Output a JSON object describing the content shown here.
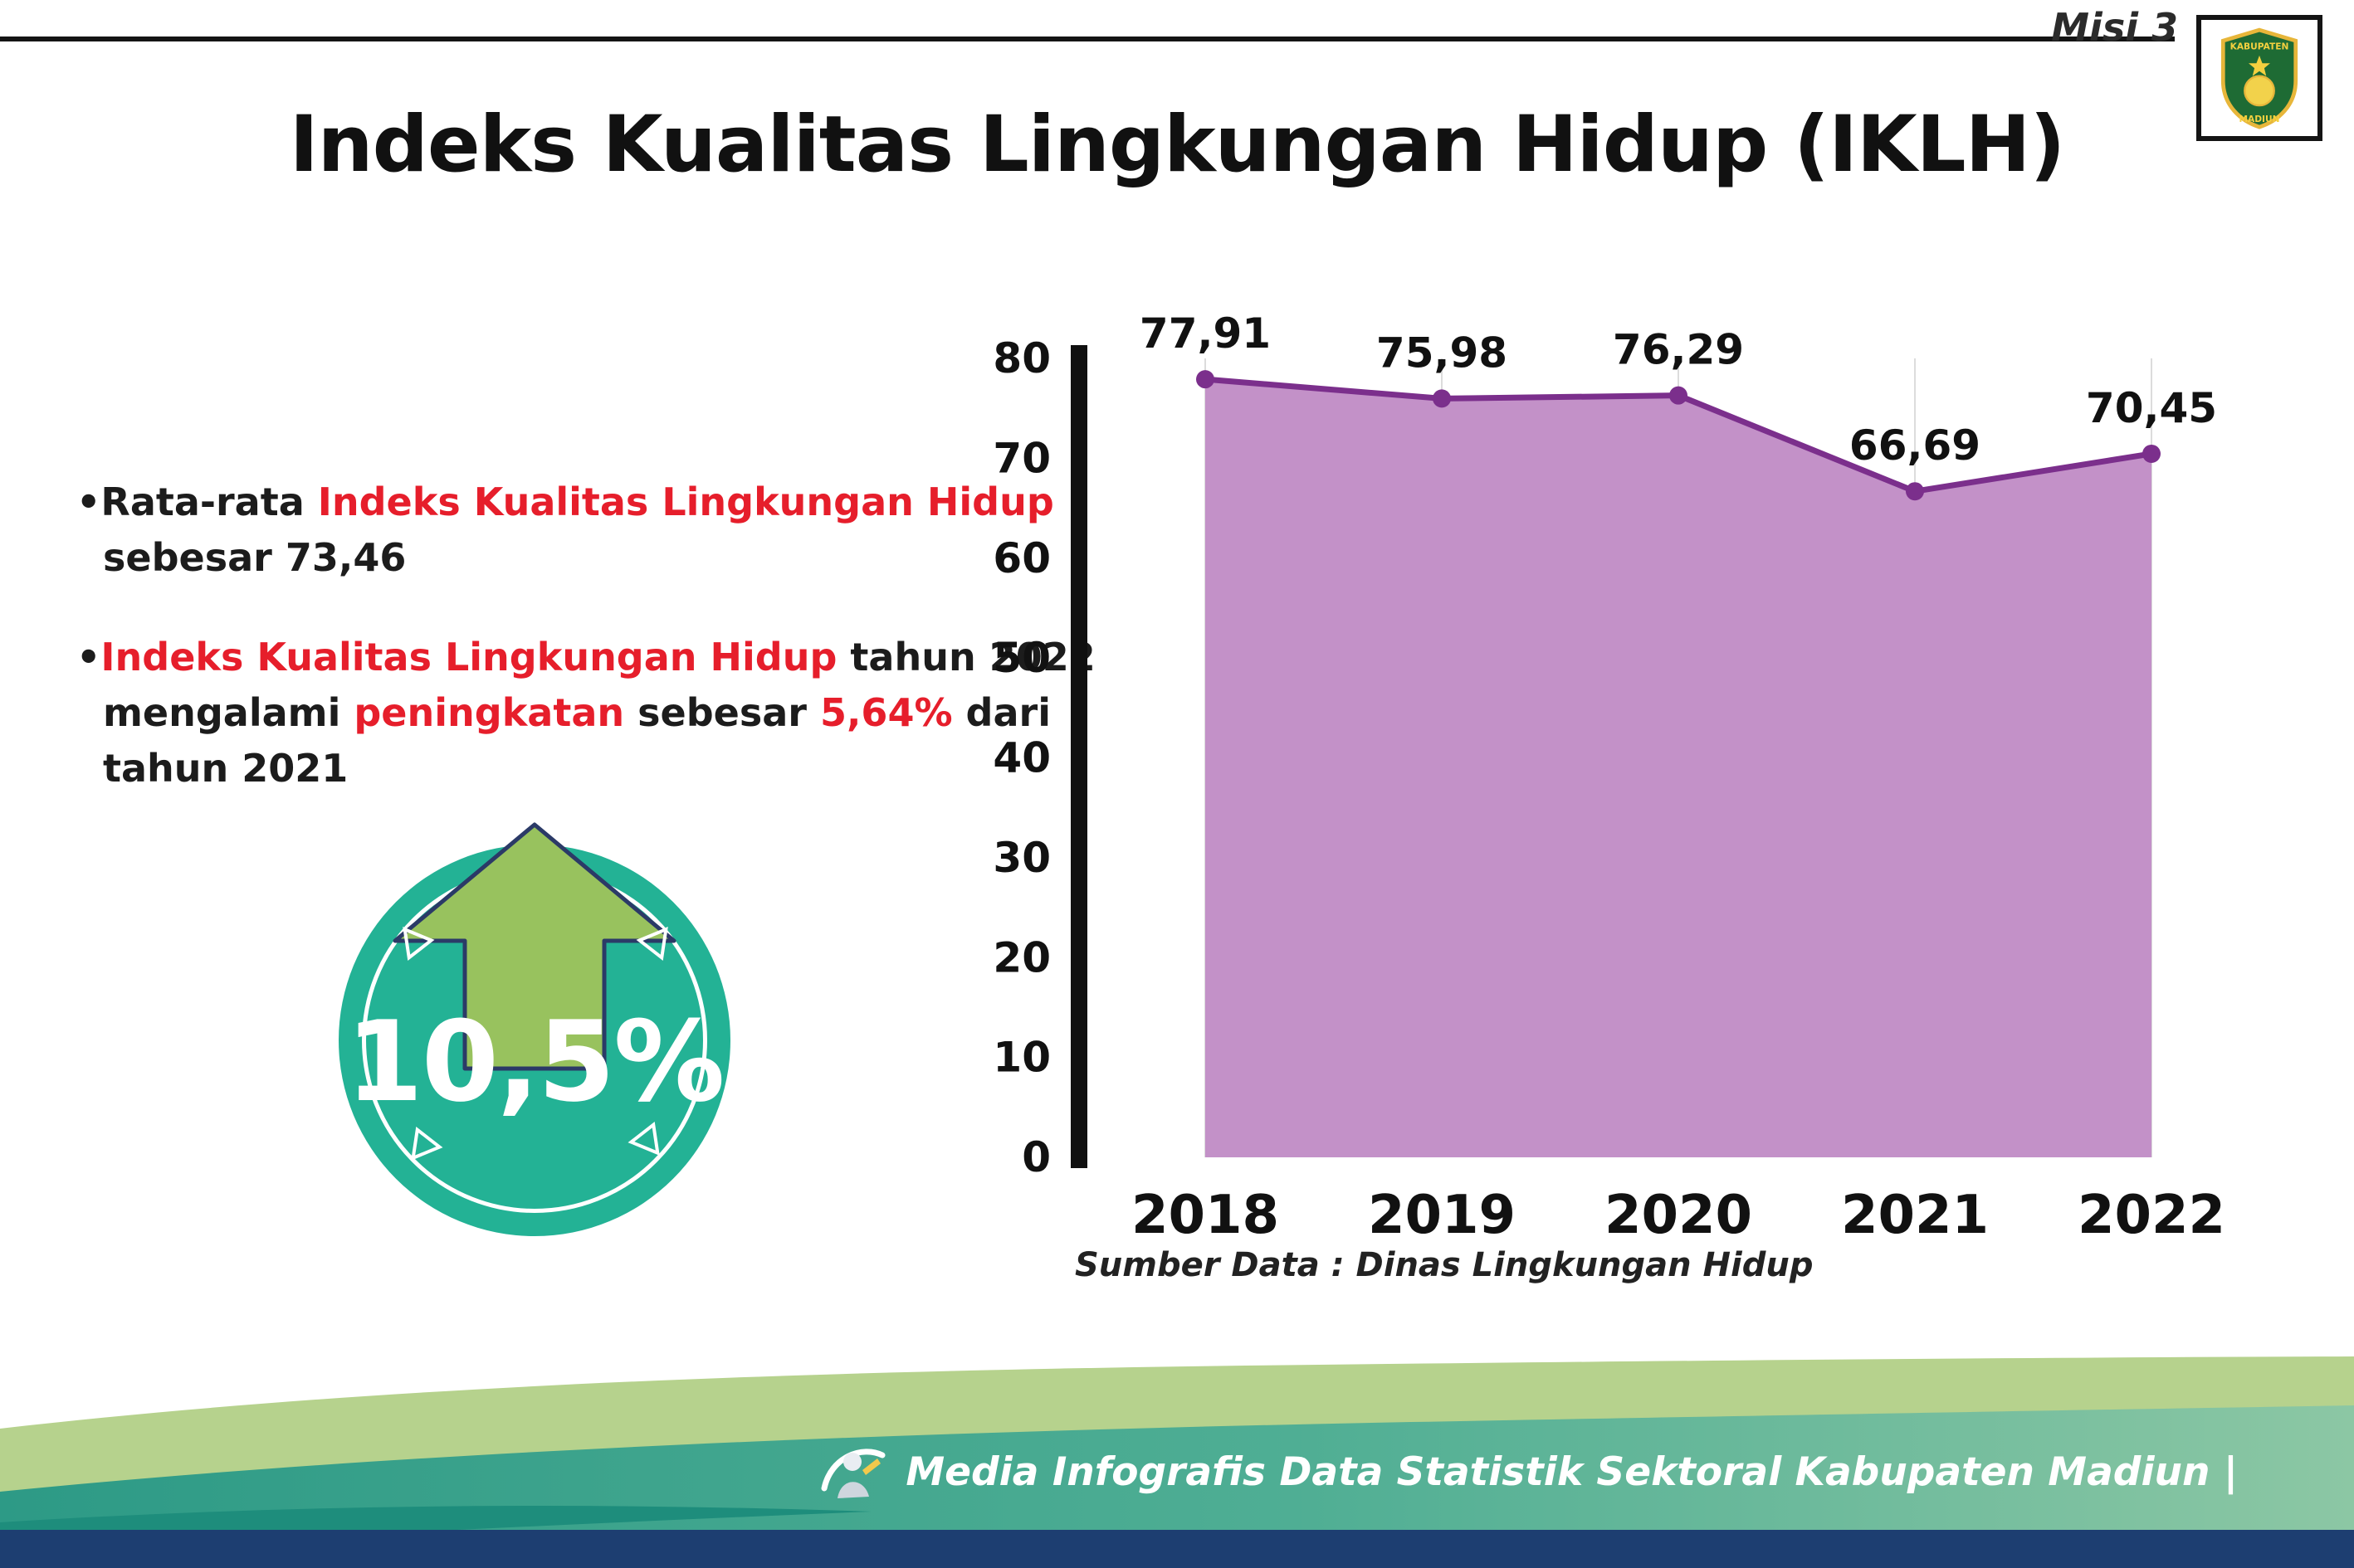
{
  "header": {
    "misi_label": "Misi 3",
    "title": "Indeks Kualitas Lingkungan Hidup (IKLH)"
  },
  "logo": {
    "arc_top": "KABUPATEN",
    "arc_bottom": "MADIUN"
  },
  "notes": {
    "bullet_char": "•",
    "b1_black1": "Rata-rata ",
    "b1_red": "Indeks Kualitas Lingkungan Hidup",
    "b1_line2": "sebesar 73,46",
    "b2_red1": "Indeks Kualitas Lingkungan Hidup",
    "b2_black1": " tahun 2022",
    "b2_black2": "mengalami ",
    "b2_red2": "peningkatan",
    "b2_black3": " sebesar ",
    "b2_red3": "5,64%",
    "b2_black4": " dari",
    "b2_line3": "tahun 2021"
  },
  "badge": {
    "value": "10,5%"
  },
  "chart_data": {
    "type": "area",
    "categories": [
      "2018",
      "2019",
      "2020",
      "2021",
      "2022"
    ],
    "values": [
      77.91,
      75.98,
      76.29,
      66.69,
      70.45
    ],
    "value_labels": [
      "77,91",
      "75,98",
      "76,29",
      "66,69",
      "70,45"
    ],
    "title": "Indeks Kualitas Lingkungan Hidup (IKLH)",
    "xlabel": "",
    "ylabel": "",
    "ylim": [
      0,
      80
    ],
    "yticks": [
      0,
      10,
      20,
      30,
      40,
      50,
      60,
      70,
      80
    ],
    "grid": "light vertical gridlines per year",
    "legend_position": "none",
    "line_color": "#7b2f8c",
    "point_color": "#7b2f8c",
    "fill_color": "#c391c8",
    "source": "Sumber Data : Dinas Lingkungan Hidup"
  },
  "footer": {
    "caption": "Media Infografis Data Statistik Sektoral Kabupaten Madiun |"
  },
  "colors": {
    "accent_red": "#e61e2b",
    "badge_teal": "#23b295",
    "arrow_green": "#98c25e",
    "footer_sage": "#b6d28d",
    "footer_teal": "#2d9a86",
    "footer_navy": "#1d3e71"
  }
}
